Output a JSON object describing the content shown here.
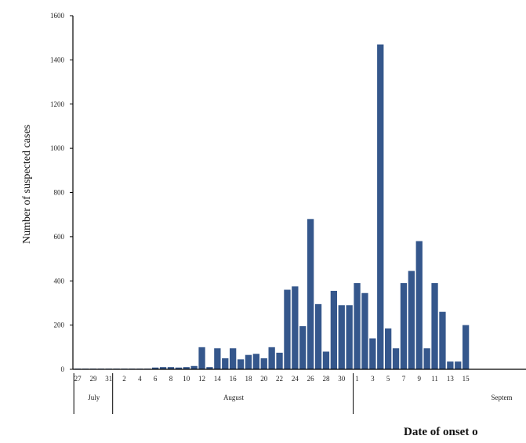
{
  "chart_data": {
    "type": "bar",
    "title": "",
    "xlabel": "Date of onset o",
    "ylabel": "Number of suspected cases",
    "ylim": [
      0,
      1600
    ],
    "yticks": [
      0,
      200,
      400,
      600,
      800,
      1000,
      1200,
      1400,
      1600
    ],
    "grid": false,
    "legend": "none",
    "bar_color": "#35578c",
    "categories": [
      "27",
      "28",
      "29",
      "30",
      "31",
      "1",
      "2",
      "3",
      "4",
      "5",
      "6",
      "7",
      "8",
      "9",
      "10",
      "11",
      "12",
      "13",
      "14",
      "15",
      "16",
      "17",
      "18",
      "19",
      "20",
      "21",
      "22",
      "23",
      "24",
      "25",
      "26",
      "27",
      "28",
      "29",
      "30",
      "31",
      "1",
      "2",
      "3",
      "4",
      "5",
      "6",
      "7",
      "8",
      "9",
      "10",
      "11",
      "12",
      "13",
      "14",
      "15",
      "16",
      "17"
    ],
    "values": [
      3,
      3,
      3,
      3,
      3,
      3,
      3,
      3,
      3,
      3,
      8,
      10,
      10,
      8,
      10,
      15,
      100,
      10,
      95,
      50,
      95,
      45,
      65,
      70,
      50,
      100,
      75,
      360,
      375,
      195,
      680,
      295,
      80,
      355,
      290,
      290,
      390,
      345,
      140,
      1470,
      185,
      95,
      390,
      445,
      580,
      95,
      390,
      260,
      35,
      35,
      200,
      0,
      0
    ],
    "x_tick_labels": [
      "27",
      "",
      "29",
      "",
      "31",
      "",
      "2",
      "",
      "4",
      "",
      "6",
      "",
      "8",
      "",
      "10",
      "",
      "12",
      "",
      "14",
      "",
      "16",
      "",
      "18",
      "",
      "20",
      "",
      "22",
      "",
      "24",
      "",
      "26",
      "",
      "28",
      "",
      "30",
      "",
      "1",
      "",
      "3",
      "",
      "5",
      "",
      "7",
      "",
      "9",
      "",
      "11",
      "",
      "13",
      "",
      "15",
      "",
      ""
    ],
    "months": [
      {
        "label": "July",
        "start": 0,
        "end": 5
      },
      {
        "label": "August",
        "start": 5,
        "end": 36
      },
      {
        "label": "Septem",
        "start": 36,
        "end": 53
      }
    ]
  }
}
